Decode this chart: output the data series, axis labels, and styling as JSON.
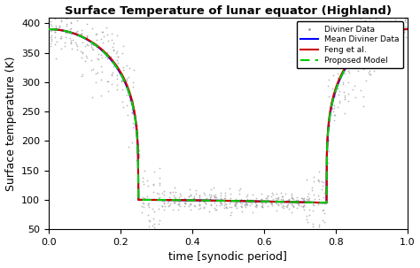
{
  "title": "Surface Temperature of lunar equator (Highland)",
  "xlabel": "time [synodic period]",
  "ylabel": "Surface temperature (K)",
  "xlim": [
    0,
    1
  ],
  "ylim": [
    50,
    410
  ],
  "yticks": [
    50,
    100,
    150,
    200,
    250,
    300,
    350,
    400
  ],
  "xticks": [
    0,
    0.2,
    0.4,
    0.6,
    0.8,
    1.0
  ],
  "mean_color": "#0000FF",
  "feng_color": "#CC0000",
  "proposed_color": "#00CC00",
  "scatter_color": "#999999",
  "background_color": "#FFFFFF",
  "T_max": 390,
  "T_min_night": 100,
  "T_deep_night": 95,
  "sunset": 0.25,
  "sunrise": 0.775,
  "n_bins": 70,
  "scatter_per_bin": 12
}
